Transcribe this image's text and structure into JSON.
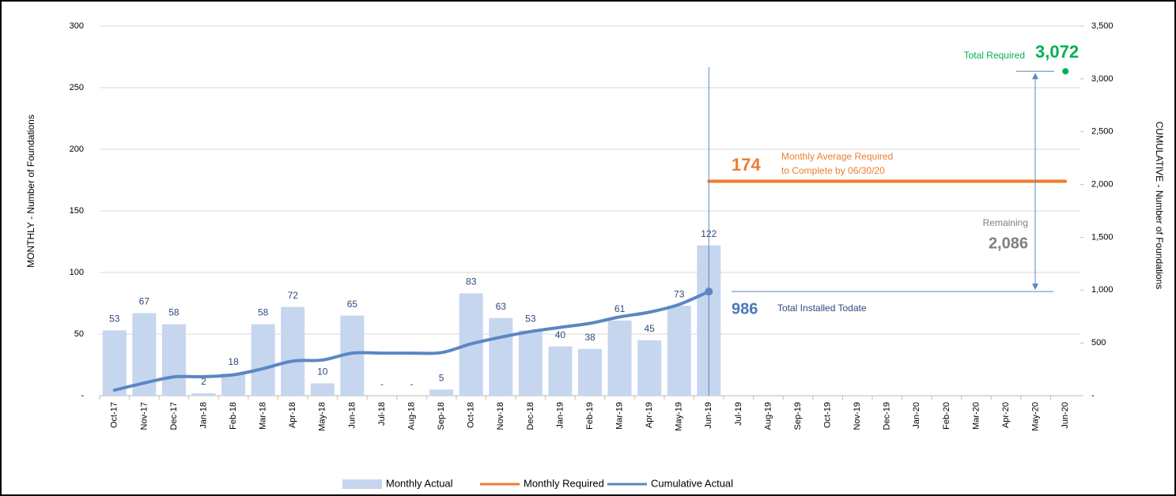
{
  "chart_data": {
    "type": "combo",
    "y_label": "MONTHLY  -  Number of Foundations",
    "y2_label": "CUMULATIVE  -  Number of Foundations",
    "categories": [
      "Oct-17",
      "Nov-17",
      "Dec-17",
      "Jan-18",
      "Feb-18",
      "Mar-18",
      "Apr-18",
      "May-18",
      "Jun-18",
      "Jul-18",
      "Aug-18",
      "Sep-18",
      "Oct-18",
      "Nov-18",
      "Dec-18",
      "Jan-19",
      "Feb-19",
      "Mar-19",
      "Apr-19",
      "May-19",
      "Jun-19",
      "Jul-19",
      "Aug-19",
      "Sep-19",
      "Oct-19",
      "Nov-19",
      "Dec-19",
      "Jan-20",
      "Feb-20",
      "Mar-20",
      "Apr-20",
      "May-20",
      "Jun-20"
    ],
    "series": [
      {
        "name": "Monthly Actual",
        "kind": "bar",
        "color": "#c6d6ef",
        "values": [
          53,
          67,
          58,
          2,
          18,
          58,
          72,
          10,
          65,
          0,
          0,
          5,
          83,
          63,
          53,
          40,
          38,
          61,
          45,
          73,
          122,
          null,
          null,
          null,
          null,
          null,
          null,
          null,
          null,
          null,
          null,
          null,
          null
        ],
        "value_labels": [
          "53",
          "67",
          "58",
          "2",
          "18",
          "58",
          "72",
          "10",
          "65",
          "-",
          "-",
          "5",
          "83",
          "63",
          "53",
          "40",
          "38",
          "61",
          "45",
          "73",
          "122",
          null,
          null,
          null,
          null,
          null,
          null,
          null,
          null,
          null,
          null,
          null,
          null
        ]
      },
      {
        "name": "Monthly Required",
        "kind": "line",
        "color": "#ed7d31",
        "values": [
          null,
          null,
          null,
          null,
          null,
          null,
          null,
          null,
          null,
          null,
          null,
          null,
          null,
          null,
          null,
          null,
          null,
          null,
          null,
          null,
          174,
          174,
          174,
          174,
          174,
          174,
          174,
          174,
          174,
          174,
          174,
          174,
          174
        ]
      },
      {
        "name": "Cumulative Actual",
        "kind": "line",
        "axis": "y2",
        "color": "#5b87c2",
        "values": [
          53,
          120,
          178,
          180,
          198,
          256,
          328,
          338,
          403,
          403,
          403,
          408,
          491,
          554,
          607,
          647,
          685,
          746,
          791,
          864,
          986,
          null,
          null,
          null,
          null,
          null,
          null,
          null,
          null,
          null,
          null,
          null,
          null
        ]
      }
    ],
    "ylim": [
      0,
      300
    ],
    "yticks": [
      {
        "value": 0,
        "label": "-"
      },
      50,
      100,
      150,
      200,
      250,
      300
    ],
    "y2lim": [
      0,
      3500
    ],
    "y2ticks": [
      {
        "value": 0,
        "label": "-"
      },
      500,
      {
        "value": 1000,
        "label": "1,000"
      },
      {
        "value": 1500,
        "label": "1,500"
      },
      {
        "value": 2000,
        "label": "2,000"
      },
      {
        "value": 2500,
        "label": "2,500"
      },
      {
        "value": 3000,
        "label": "3,000"
      },
      {
        "value": 3500,
        "label": "3,500"
      }
    ],
    "grid": true,
    "legend": "bottom",
    "annotations": {
      "total_required_text": "Total Required",
      "total_required": {
        "value": 3072,
        "label": "3,072"
      },
      "required_text_1": "Monthly Average Required",
      "required_text_2": "to Complete by 06/30/20",
      "remaining_text": "Remaining",
      "remaining": {
        "value": 2086,
        "label": "2,086"
      },
      "installed_text": "Total Installed Todate"
    }
  }
}
